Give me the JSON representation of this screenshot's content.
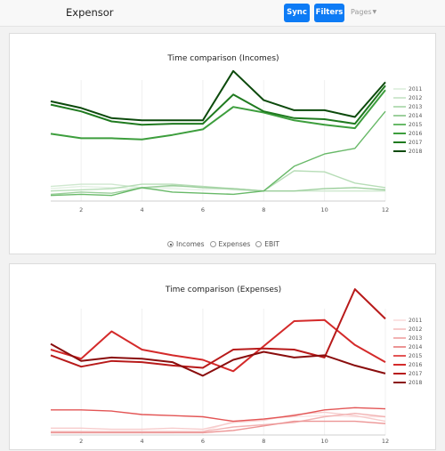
{
  "navbar": {
    "brand": "Expensor",
    "sync_label": "Sync",
    "filters_label": "Filters",
    "pages_label": "Pages",
    "accent_color": "#0d7bf5"
  },
  "chart_data": [
    {
      "type": "line",
      "title": "Time comparison (Incomes)",
      "x": [
        1,
        2,
        3,
        4,
        5,
        6,
        7,
        8,
        9,
        10,
        11,
        12
      ],
      "xticks": [
        2,
        4,
        6,
        8,
        10,
        12
      ],
      "ylim": [
        0,
        100
      ],
      "legend_position": "right",
      "series": [
        {
          "name": "2011",
          "color": "#e3f1e3",
          "values": [
            11,
            13,
            12,
            11,
            11,
            10,
            11,
            9,
            9,
            9,
            9,
            9
          ]
        },
        {
          "name": "2012",
          "color": "#cfe8cf",
          "values": [
            13,
            15,
            15,
            12,
            13,
            13,
            10,
            9,
            9,
            9,
            9,
            9
          ]
        },
        {
          "name": "2013",
          "color": "#b7ddb7",
          "values": [
            9,
            10,
            11,
            15,
            15,
            13,
            11,
            9,
            27,
            26,
            16,
            12
          ]
        },
        {
          "name": "2014",
          "color": "#9ccf9c",
          "values": [
            6,
            8,
            7,
            12,
            14,
            12,
            11,
            9,
            9,
            11,
            12,
            10
          ]
        },
        {
          "name": "2015",
          "color": "#68b968",
          "values": [
            5,
            6,
            5,
            12,
            8,
            7,
            6,
            9,
            31,
            42,
            47,
            80
          ]
        },
        {
          "name": "2016",
          "color": "#3d9e3d",
          "values": [
            60,
            56,
            56,
            55,
            59,
            64,
            84,
            79,
            72,
            68,
            65,
            99
          ]
        },
        {
          "name": "2017",
          "color": "#1f7a1f",
          "values": [
            86,
            80,
            71,
            68,
            69,
            69,
            95,
            80,
            74,
            73,
            69,
            103
          ]
        },
        {
          "name": "2018",
          "color": "#0c4a0c",
          "values": [
            89,
            83,
            74,
            72,
            72,
            72,
            116,
            90,
            81,
            81,
            75,
            106
          ]
        }
      ]
    },
    {
      "type": "line",
      "title": "Time comparison (Expenses)",
      "x": [
        1,
        2,
        3,
        4,
        5,
        6,
        7,
        8,
        9,
        10,
        11,
        12
      ],
      "xticks": [
        2,
        4,
        6,
        8,
        10,
        12
      ],
      "ylim": [
        0,
        100
      ],
      "legend_position": "right",
      "series": [
        {
          "name": "2011",
          "color": "#fbe3e3",
          "values": [
            2,
            2,
            2,
            2,
            2,
            3,
            12,
            14,
            16,
            17,
            16,
            16
          ]
        },
        {
          "name": "2012",
          "color": "#f7cccc",
          "values": [
            6,
            6,
            5,
            5,
            6,
            5,
            11,
            13,
            18,
            20,
            17,
            12
          ]
        },
        {
          "name": "2013",
          "color": "#f2b3b3",
          "values": [
            3,
            3,
            3,
            3,
            3,
            3,
            7,
            9,
            11,
            16,
            19,
            16
          ]
        },
        {
          "name": "2014",
          "color": "#ec9494",
          "values": [
            2,
            2,
            2,
            2,
            2,
            2,
            4,
            8,
            12,
            12,
            12,
            10
          ]
        },
        {
          "name": "2015",
          "color": "#e35555",
          "values": [
            22,
            22,
            21,
            18,
            17,
            16,
            12,
            14,
            17,
            22,
            24,
            23
          ]
        },
        {
          "name": "2016",
          "color": "#d42a2a",
          "values": [
            75,
            67,
            91,
            75,
            70,
            66,
            56,
            78,
            100,
            101,
            79,
            64
          ]
        },
        {
          "name": "2017",
          "color": "#b81a1a",
          "values": [
            70,
            60,
            65,
            64,
            61,
            59,
            75,
            76,
            75,
            68,
            128,
            102
          ]
        },
        {
          "name": "2018",
          "color": "#8a0d0d",
          "values": [
            80,
            65,
            68,
            67,
            64,
            52,
            66,
            73,
            68,
            70,
            61,
            54
          ]
        }
      ]
    }
  ],
  "radio_options": [
    {
      "label": "Incomes",
      "checked": true
    },
    {
      "label": "Expenses",
      "checked": false
    },
    {
      "label": "EBIT",
      "checked": false
    }
  ]
}
